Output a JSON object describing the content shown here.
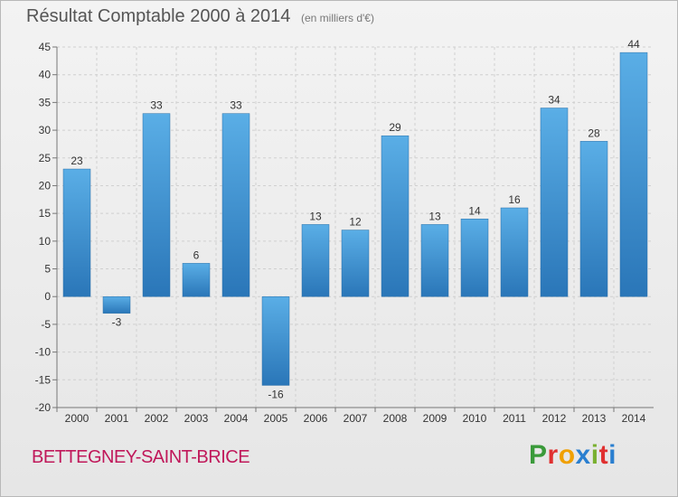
{
  "chart_data": {
    "type": "bar",
    "title": "Résultat Comptable 2000 à 2014",
    "subtitle": "(en milliers d'€)",
    "categories": [
      "2000",
      "2001",
      "2002",
      "2003",
      "2004",
      "2005",
      "2006",
      "2007",
      "2008",
      "2009",
      "2010",
      "2011",
      "2012",
      "2013",
      "2014"
    ],
    "values": [
      23,
      -3,
      33,
      6,
      33,
      -16,
      13,
      12,
      29,
      13,
      14,
      16,
      34,
      28,
      44
    ],
    "ylim": [
      -20,
      45
    ],
    "yticks": [
      -20,
      -15,
      -10,
      -5,
      0,
      5,
      10,
      15,
      20,
      25,
      30,
      35,
      40,
      45
    ],
    "grid": true,
    "bar_color": "#3a8fd0"
  },
  "footer": {
    "city": "BETTEGNEY-SAINT-BRICE",
    "brand": "Proxiti",
    "brand_colors": [
      "#3a9a3a",
      "#e03030",
      "#f0a000",
      "#2a7fd0",
      "#7ab030",
      "#e03030",
      "#2a7fd0"
    ]
  }
}
